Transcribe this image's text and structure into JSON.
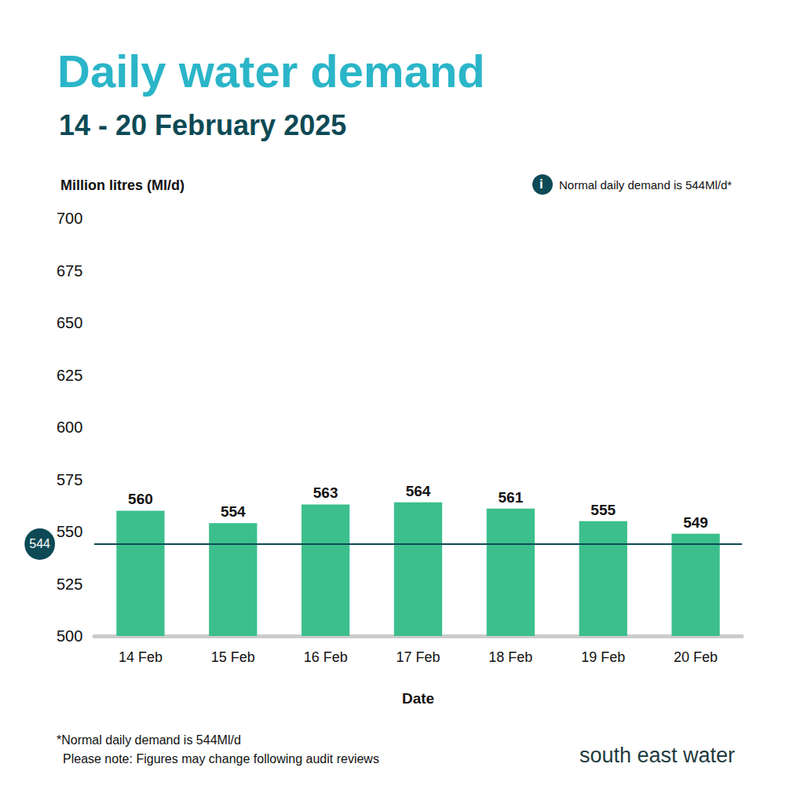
{
  "chart_data": {
    "type": "bar",
    "title": "Daily water demand",
    "subtitle": "14 - 20 February 2025",
    "y_label": "Million litres (Ml/d)",
    "x_label": "Date",
    "categories": [
      "14 Feb",
      "15 Feb",
      "16 Feb",
      "17 Feb",
      "18 Feb",
      "19 Feb",
      "20 Feb"
    ],
    "values": [
      560,
      554,
      563,
      564,
      561,
      555,
      549
    ],
    "color": "#3cbf8c",
    "ylim": [
      500,
      700
    ],
    "yticks": [
      500,
      525,
      550,
      575,
      600,
      625,
      650,
      675,
      700
    ],
    "grid": false,
    "data_labels": true,
    "reference_line": 544,
    "note_icon": "i",
    "annotation": "Normal daily demand is 544Ml/d*",
    "footnotes": [
      "*Normal daily demand is 544Ml/d",
      "Please note: Figures may change following audit reviews"
    ],
    "logo": "south east water"
  }
}
